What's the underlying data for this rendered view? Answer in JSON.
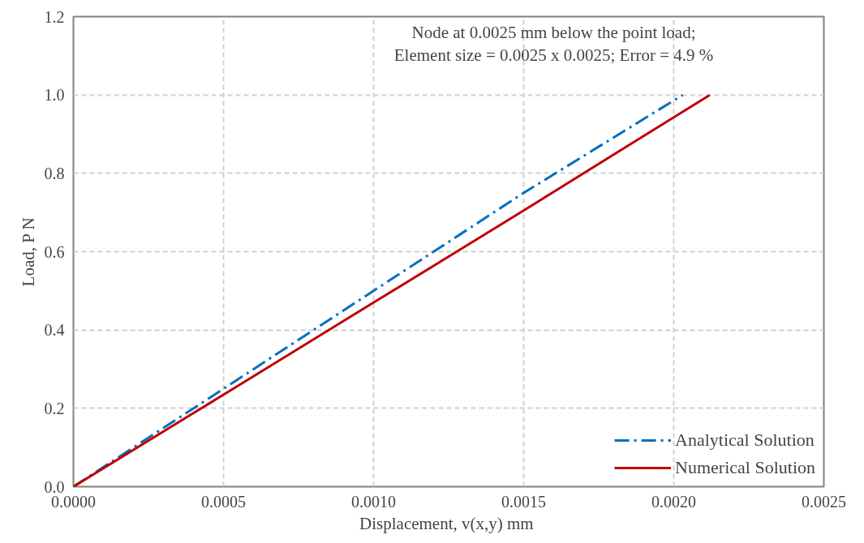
{
  "chart_data": {
    "type": "line",
    "xlabel": "Displacement, v(x,y)  mm",
    "ylabel": "Load, P N",
    "annotations": [
      "Node at 0.0025 mm below the point load;\nElement size = 0.0025 x 0.0025; Error = 4.9 %"
    ],
    "xlim": [
      0,
      0.0025
    ],
    "xticks": [
      {
        "value": 0,
        "label": "0.0000"
      },
      {
        "value": 0.0005,
        "label": "0.0005"
      },
      {
        "value": 0.001,
        "label": "0.0010"
      },
      {
        "value": 0.0015,
        "label": "0.0015"
      },
      {
        "value": 0.002,
        "label": "0.0020"
      },
      {
        "value": 0.0025,
        "label": "0.0025"
      }
    ],
    "ylim": [
      0,
      1.2
    ],
    "yticks": [
      {
        "value": 0,
        "label": "0.0"
      },
      {
        "value": 0.2,
        "label": "0.2"
      },
      {
        "value": 0.4,
        "label": "0.4"
      },
      {
        "value": 0.6,
        "label": "0.6"
      },
      {
        "value": 0.8,
        "label": "0.8"
      },
      {
        "value": 1.0,
        "label": "1.0"
      },
      {
        "value": 1.2,
        "label": "1.2"
      }
    ],
    "grid": true,
    "legend": "bottom right",
    "series": [
      {
        "name": "Analytical Solution",
        "color": "#0070c0",
        "line_style": "dashdot",
        "x": [
          0,
          0.0005,
          0.001,
          0.0015,
          0.00203
        ],
        "values": [
          0,
          0.25,
          0.5,
          0.75,
          1.0
        ]
      },
      {
        "name": "Numerical Solution",
        "color": "#c00000",
        "line_style": "solid",
        "x": [
          0,
          0.0005,
          0.001,
          0.0015,
          0.00212
        ],
        "values": [
          0,
          0.235,
          0.47,
          0.705,
          1.0
        ]
      }
    ]
  }
}
